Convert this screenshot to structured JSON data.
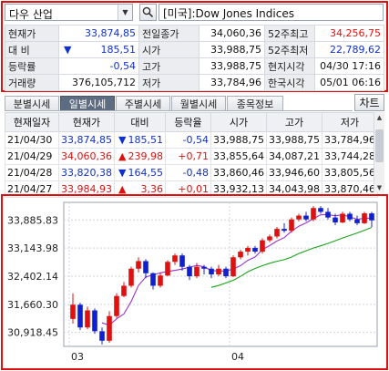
{
  "search": {
    "value": "다우 산업"
  },
  "title_field": {
    "value": "[미국]:Dow Jones Indices"
  },
  "info": {
    "rows": [
      {
        "l1": "현재가",
        "v1": "33,874,85",
        "l2": "전일종가",
        "v2": "34,060,36",
        "l3": "52주최고",
        "v3": "34,256,75"
      },
      {
        "l1": "대 비",
        "v1": "185,51",
        "l2": "시가",
        "v2": "33,988,75",
        "l3": "52주최저",
        "v3": "22,789,62"
      },
      {
        "l1": "등락률",
        "v1": "-0,54",
        "l2": "고가",
        "v2": "33,988,75",
        "l3": "현지시각",
        "v3": "04/30 17:16"
      },
      {
        "l1": "거래량",
        "v1": "376,105,712",
        "l2": "저가",
        "v2": "33,784,96",
        "l3": "한국시각",
        "v3": "05/01 06:16"
      }
    ]
  },
  "tabs": [
    "분별시세",
    "일별시세",
    "주별시세",
    "월별시세",
    "종목정보"
  ],
  "chart_button": "차트",
  "grid": {
    "headers": [
      "현재일자",
      "현재가",
      "대비",
      "등락율",
      "시가",
      "고가",
      "저가"
    ],
    "rows": [
      {
        "date": "21/04/30",
        "price": "33,874,85",
        "sign": "▼",
        "change": "185,51",
        "rate": "-0,54",
        "open": "33,988,75",
        "high": "33,988,75",
        "low": "33,784,96",
        "dir": "down"
      },
      {
        "date": "21/04/29",
        "price": "34,060,36",
        "sign": "▲",
        "change": "239,98",
        "rate": "+0,71",
        "open": "33,855,64",
        "high": "34,087,21",
        "low": "33,744,28",
        "dir": "up"
      },
      {
        "date": "21/04/28",
        "price": "33,820,38",
        "sign": "▼",
        "change": "164,55",
        "rate": "-0,48",
        "open": "33,860,46",
        "high": "33,946,60",
        "low": "33,805,56",
        "dir": "down"
      },
      {
        "date": "21/04/27",
        "price": "33,984,93",
        "sign": "▲",
        "change": "3,36",
        "rate": "+0,01",
        "open": "33,932,13",
        "high": "34,043,98",
        "low": "33,870,46",
        "dir": "up"
      }
    ]
  },
  "chart_data": {
    "type": "candlestick",
    "y_ticks": [
      "33,885.83",
      "33,143.98",
      "32,402.14",
      "31,660.30",
      "30,918.45"
    ],
    "y_tick_values": [
      33885.83,
      33143.98,
      32402.14,
      31660.3,
      30918.45
    ],
    "ylim": [
      30550,
      34350
    ],
    "x_tick_labels": [
      "03",
      "04"
    ],
    "colors": {
      "up": "#e01010",
      "down": "#1020d0",
      "ma_short": "#9933cc",
      "ma_long": "#19a319",
      "grid": "#cfd3da"
    },
    "candles": [
      [
        31275,
        31950,
        31150,
        31650
      ],
      [
        31650,
        31700,
        30980,
        31050
      ],
      [
        31050,
        31600,
        31000,
        31500
      ],
      [
        31500,
        31550,
        30880,
        30950
      ],
      [
        30950,
        31050,
        30600,
        30700
      ],
      [
        30700,
        31480,
        30650,
        31350
      ],
      [
        31350,
        31950,
        31300,
        31880
      ],
      [
        31880,
        32250,
        31850,
        32150
      ],
      [
        32150,
        32650,
        32100,
        32600
      ],
      [
        32600,
        32900,
        32500,
        32800
      ],
      [
        32800,
        32850,
        32350,
        32480
      ],
      [
        32480,
        32500,
        32050,
        32150
      ],
      [
        32150,
        32500,
        32100,
        32420
      ],
      [
        32420,
        32820,
        32400,
        32780
      ],
      [
        32780,
        33000,
        32700,
        32950
      ],
      [
        32950,
        33000,
        32550,
        32650
      ],
      [
        32650,
        32700,
        32300,
        32400
      ],
      [
        32400,
        32750,
        32350,
        32650
      ],
      [
        32650,
        32700,
        32450,
        32600
      ],
      [
        32600,
        32650,
        32350,
        32450
      ],
      [
        32450,
        32700,
        32400,
        32600
      ],
      [
        32600,
        32650,
        32350,
        32400
      ],
      [
        32400,
        32950,
        32380,
        32900
      ],
      [
        32900,
        33100,
        32850,
        33050
      ],
      [
        33050,
        33200,
        32950,
        33150
      ],
      [
        33150,
        33200,
        33000,
        33050
      ],
      [
        33050,
        33400,
        33000,
        33350
      ],
      [
        33350,
        33500,
        33300,
        33450
      ],
      [
        33450,
        33700,
        33400,
        33650
      ],
      [
        33650,
        33800,
        33550,
        33600
      ],
      [
        33600,
        33950,
        33550,
        33900
      ],
      [
        33900,
        34050,
        33850,
        34000
      ],
      [
        34000,
        34100,
        33850,
        33900
      ],
      [
        33900,
        34250,
        33850,
        34200
      ],
      [
        34200,
        34250,
        34050,
        34100
      ],
      [
        34100,
        34200,
        33900,
        33950
      ],
      [
        33950,
        34050,
        33750,
        33820
      ],
      [
        33820,
        34100,
        33800,
        34050
      ],
      [
        34050,
        34100,
        33850,
        33900
      ],
      [
        33900,
        34000,
        33750,
        33800
      ],
      [
        33800,
        34100,
        33780,
        34060
      ],
      [
        34060,
        34100,
        33700,
        33875
      ]
    ]
  }
}
